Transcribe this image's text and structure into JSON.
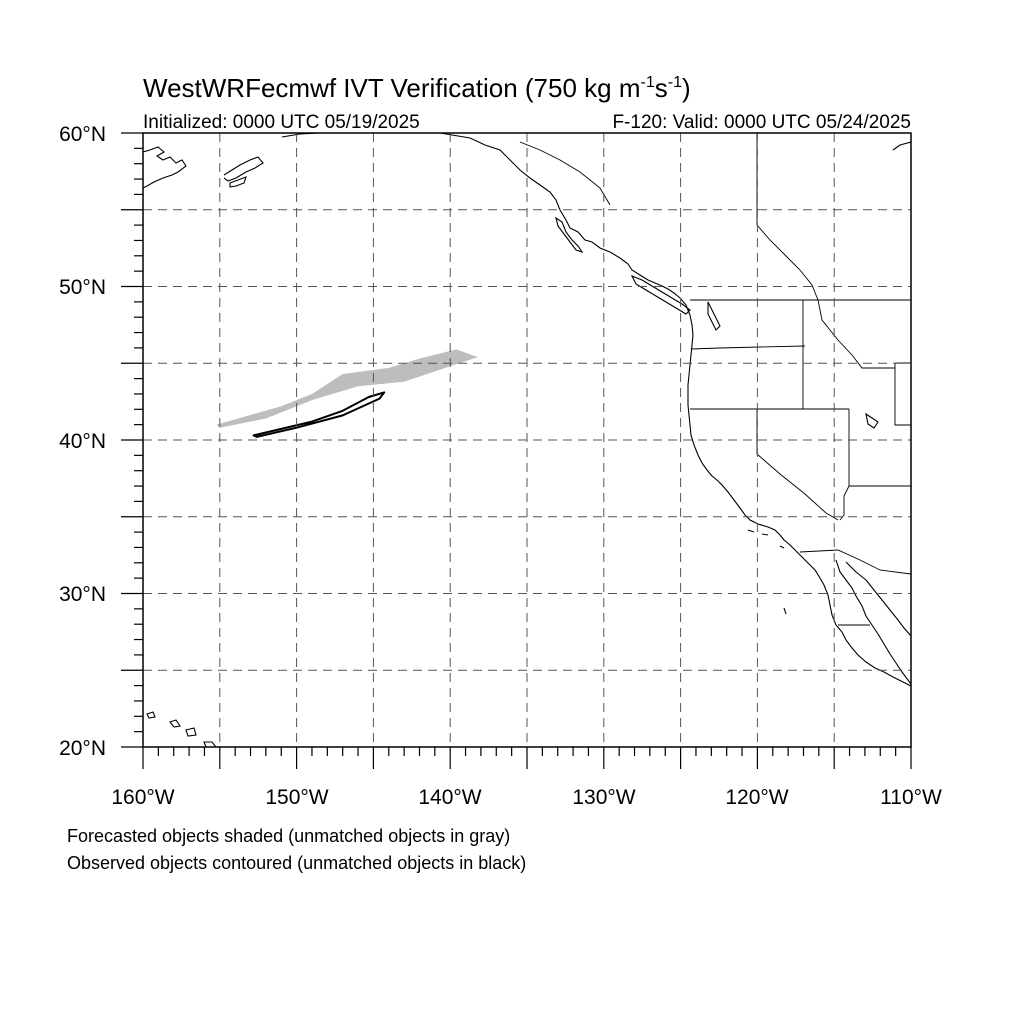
{
  "title": {
    "main": "WestWRFecmwf IVT Verification (750 kg m",
    "sup1": "-1",
    "mid": "s",
    "sup2": "-1",
    "end": ")"
  },
  "initialized": "Initialized: 0000 UTC 05/19/2025",
  "valid": "F-120: Valid: 0000 UTC 05/24/2025",
  "lat_labels": [
    "60°N",
    "50°N",
    "40°N",
    "30°N",
    "20°N"
  ],
  "lon_labels": [
    "160°W",
    "150°W",
    "140°W",
    "130°W",
    "120°W",
    "110°W"
  ],
  "legend": {
    "line1": "Forecasted objects shaded (unmatched objects in gray)",
    "line2": "Observed objects contoured (unmatched objects in black)"
  },
  "colors": {
    "forecast_unmatched": "#bdbdbd",
    "observed_unmatched": "#000000",
    "coast": "#000000",
    "grid": "#555555"
  },
  "map_extent": {
    "lon_min": -160,
    "lon_max": -110,
    "lat_min": 20,
    "lat_max": 60
  },
  "grid_spacing_deg": 5,
  "objects": {
    "forecast": [
      {
        "status": "unmatched",
        "polygon_lonlat": [
          [
            -155.2,
            41.0
          ],
          [
            -151,
            42.2
          ],
          [
            -149,
            43.0
          ],
          [
            -147,
            44.3
          ],
          [
            -144,
            44.7
          ],
          [
            -142,
            45.3
          ],
          [
            -139.6,
            45.9
          ],
          [
            -138.2,
            45.4
          ],
          [
            -140,
            44.8
          ],
          [
            -143,
            43.8
          ],
          [
            -146,
            43.5
          ],
          [
            -149,
            42.6
          ],
          [
            -152,
            41.4
          ],
          [
            -155,
            40.8
          ]
        ]
      }
    ],
    "observed": [
      {
        "status": "unmatched",
        "polygon_lonlat": [
          [
            -152.8,
            40.3
          ],
          [
            -149,
            41.2
          ],
          [
            -147,
            41.9
          ],
          [
            -145.3,
            42.8
          ],
          [
            -144.3,
            43.1
          ],
          [
            -144.6,
            42.7
          ],
          [
            -147,
            41.6
          ],
          [
            -150,
            40.8
          ],
          [
            -152.6,
            40.2
          ]
        ]
      }
    ]
  }
}
